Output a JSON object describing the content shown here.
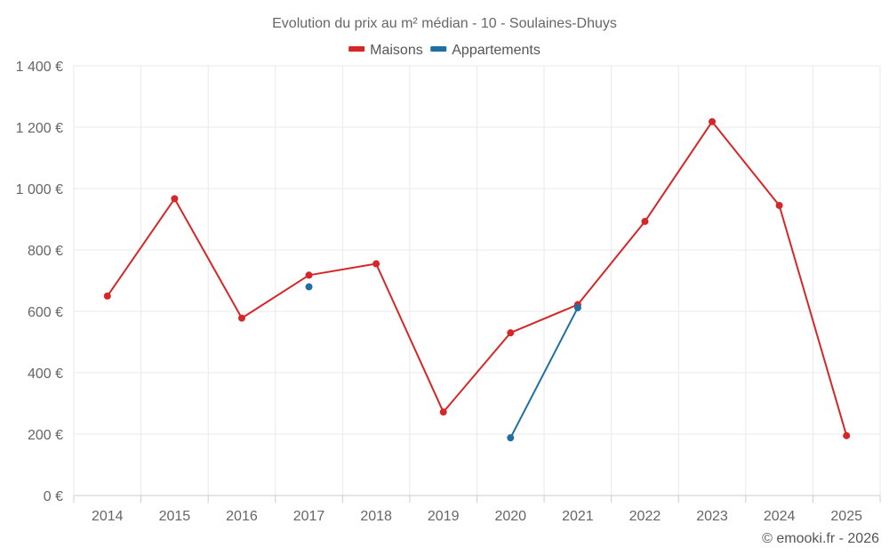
{
  "chart_data": {
    "type": "line",
    "title": "Evolution du prix au m² médian - 10 - Soulaines-Dhuys",
    "categories": [
      "2014",
      "2015",
      "2016",
      "2017",
      "2018",
      "2019",
      "2020",
      "2021",
      "2022",
      "2023",
      "2024",
      "2025"
    ],
    "ylim": [
      0,
      1400
    ],
    "yticks": [
      0,
      200,
      400,
      600,
      800,
      1000,
      1200,
      1400
    ],
    "ytick_labels": [
      "0 €",
      "200 €",
      "400 €",
      "600 €",
      "800 €",
      "1 000 €",
      "1 200 €",
      "1 400 €"
    ],
    "grid": true,
    "legend_position": "top-center",
    "series": [
      {
        "name": "Maisons",
        "color": "#d62728",
        "values": [
          650,
          967,
          578,
          718,
          755,
          272,
          530,
          622,
          893,
          1218,
          945,
          195
        ]
      },
      {
        "name": "Appartements",
        "color": "#1f6fa0",
        "values": [
          null,
          null,
          null,
          680,
          null,
          null,
          188,
          612,
          null,
          null,
          null,
          null
        ]
      }
    ]
  },
  "credit": "© emooki.fr - 2026"
}
